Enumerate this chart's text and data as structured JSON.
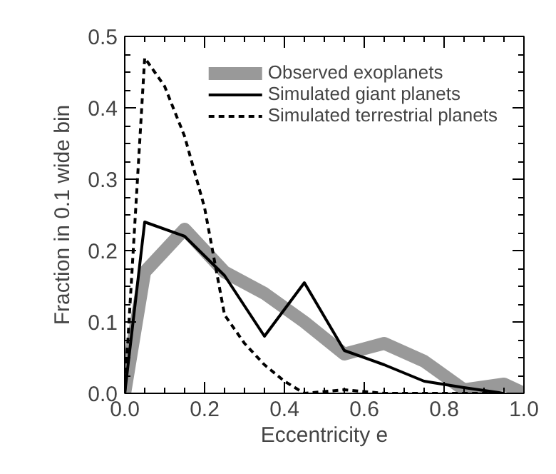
{
  "chart_data": {
    "type": "line",
    "xlabel": "Eccentricity e",
    "ylabel": "Fraction in 0.1 wide bin",
    "xlim": [
      0,
      1
    ],
    "ylim": [
      0,
      0.5
    ],
    "xticks": [
      {
        "value": 0,
        "label": "0.0"
      },
      0.2,
      0.4,
      0.6,
      0.8,
      {
        "value": 1,
        "label": "1.0"
      }
    ],
    "yticks": [
      {
        "value": 0,
        "label": "0.0"
      },
      0.1,
      0.2,
      0.3,
      0.4,
      0.5
    ],
    "grid": false,
    "legend": "top right",
    "marker": "none",
    "series": [
      {
        "name": "Observed exoplanets",
        "color": "#999999",
        "line_style": "solid",
        "x": [
          0,
          0.05,
          0.15,
          0.25,
          0.35,
          0.45,
          0.55,
          0.65,
          0.75,
          0.85,
          0.95,
          1.0
        ],
        "values": [
          0,
          0.17,
          0.23,
          0.17,
          0.14,
          0.1,
          0.055,
          0.07,
          0.045,
          0.005,
          0.013,
          0
        ]
      },
      {
        "name": "Simulated giant planets",
        "color": "#000000",
        "line_style": "solid",
        "x": [
          0,
          0.05,
          0.15,
          0.25,
          0.35,
          0.45,
          0.55,
          0.65,
          0.75,
          0.85,
          0.95
        ],
        "values": [
          0,
          0.24,
          0.22,
          0.165,
          0.08,
          0.155,
          0.06,
          0.04,
          0.017,
          0.008,
          0
        ]
      },
      {
        "name": "Simulated terrestrial planets",
        "color": "#000000",
        "line_style": "dashed",
        "x": [
          0,
          0.05,
          0.1,
          0.15,
          0.2,
          0.25,
          0.3,
          0.35,
          0.4,
          0.45,
          0.55,
          0.65,
          0.75,
          0.85,
          0.95
        ],
        "values": [
          0,
          0.47,
          0.43,
          0.36,
          0.26,
          0.11,
          0.07,
          0.04,
          0.017,
          0,
          0.005,
          0,
          0,
          0,
          0
        ]
      }
    ]
  }
}
